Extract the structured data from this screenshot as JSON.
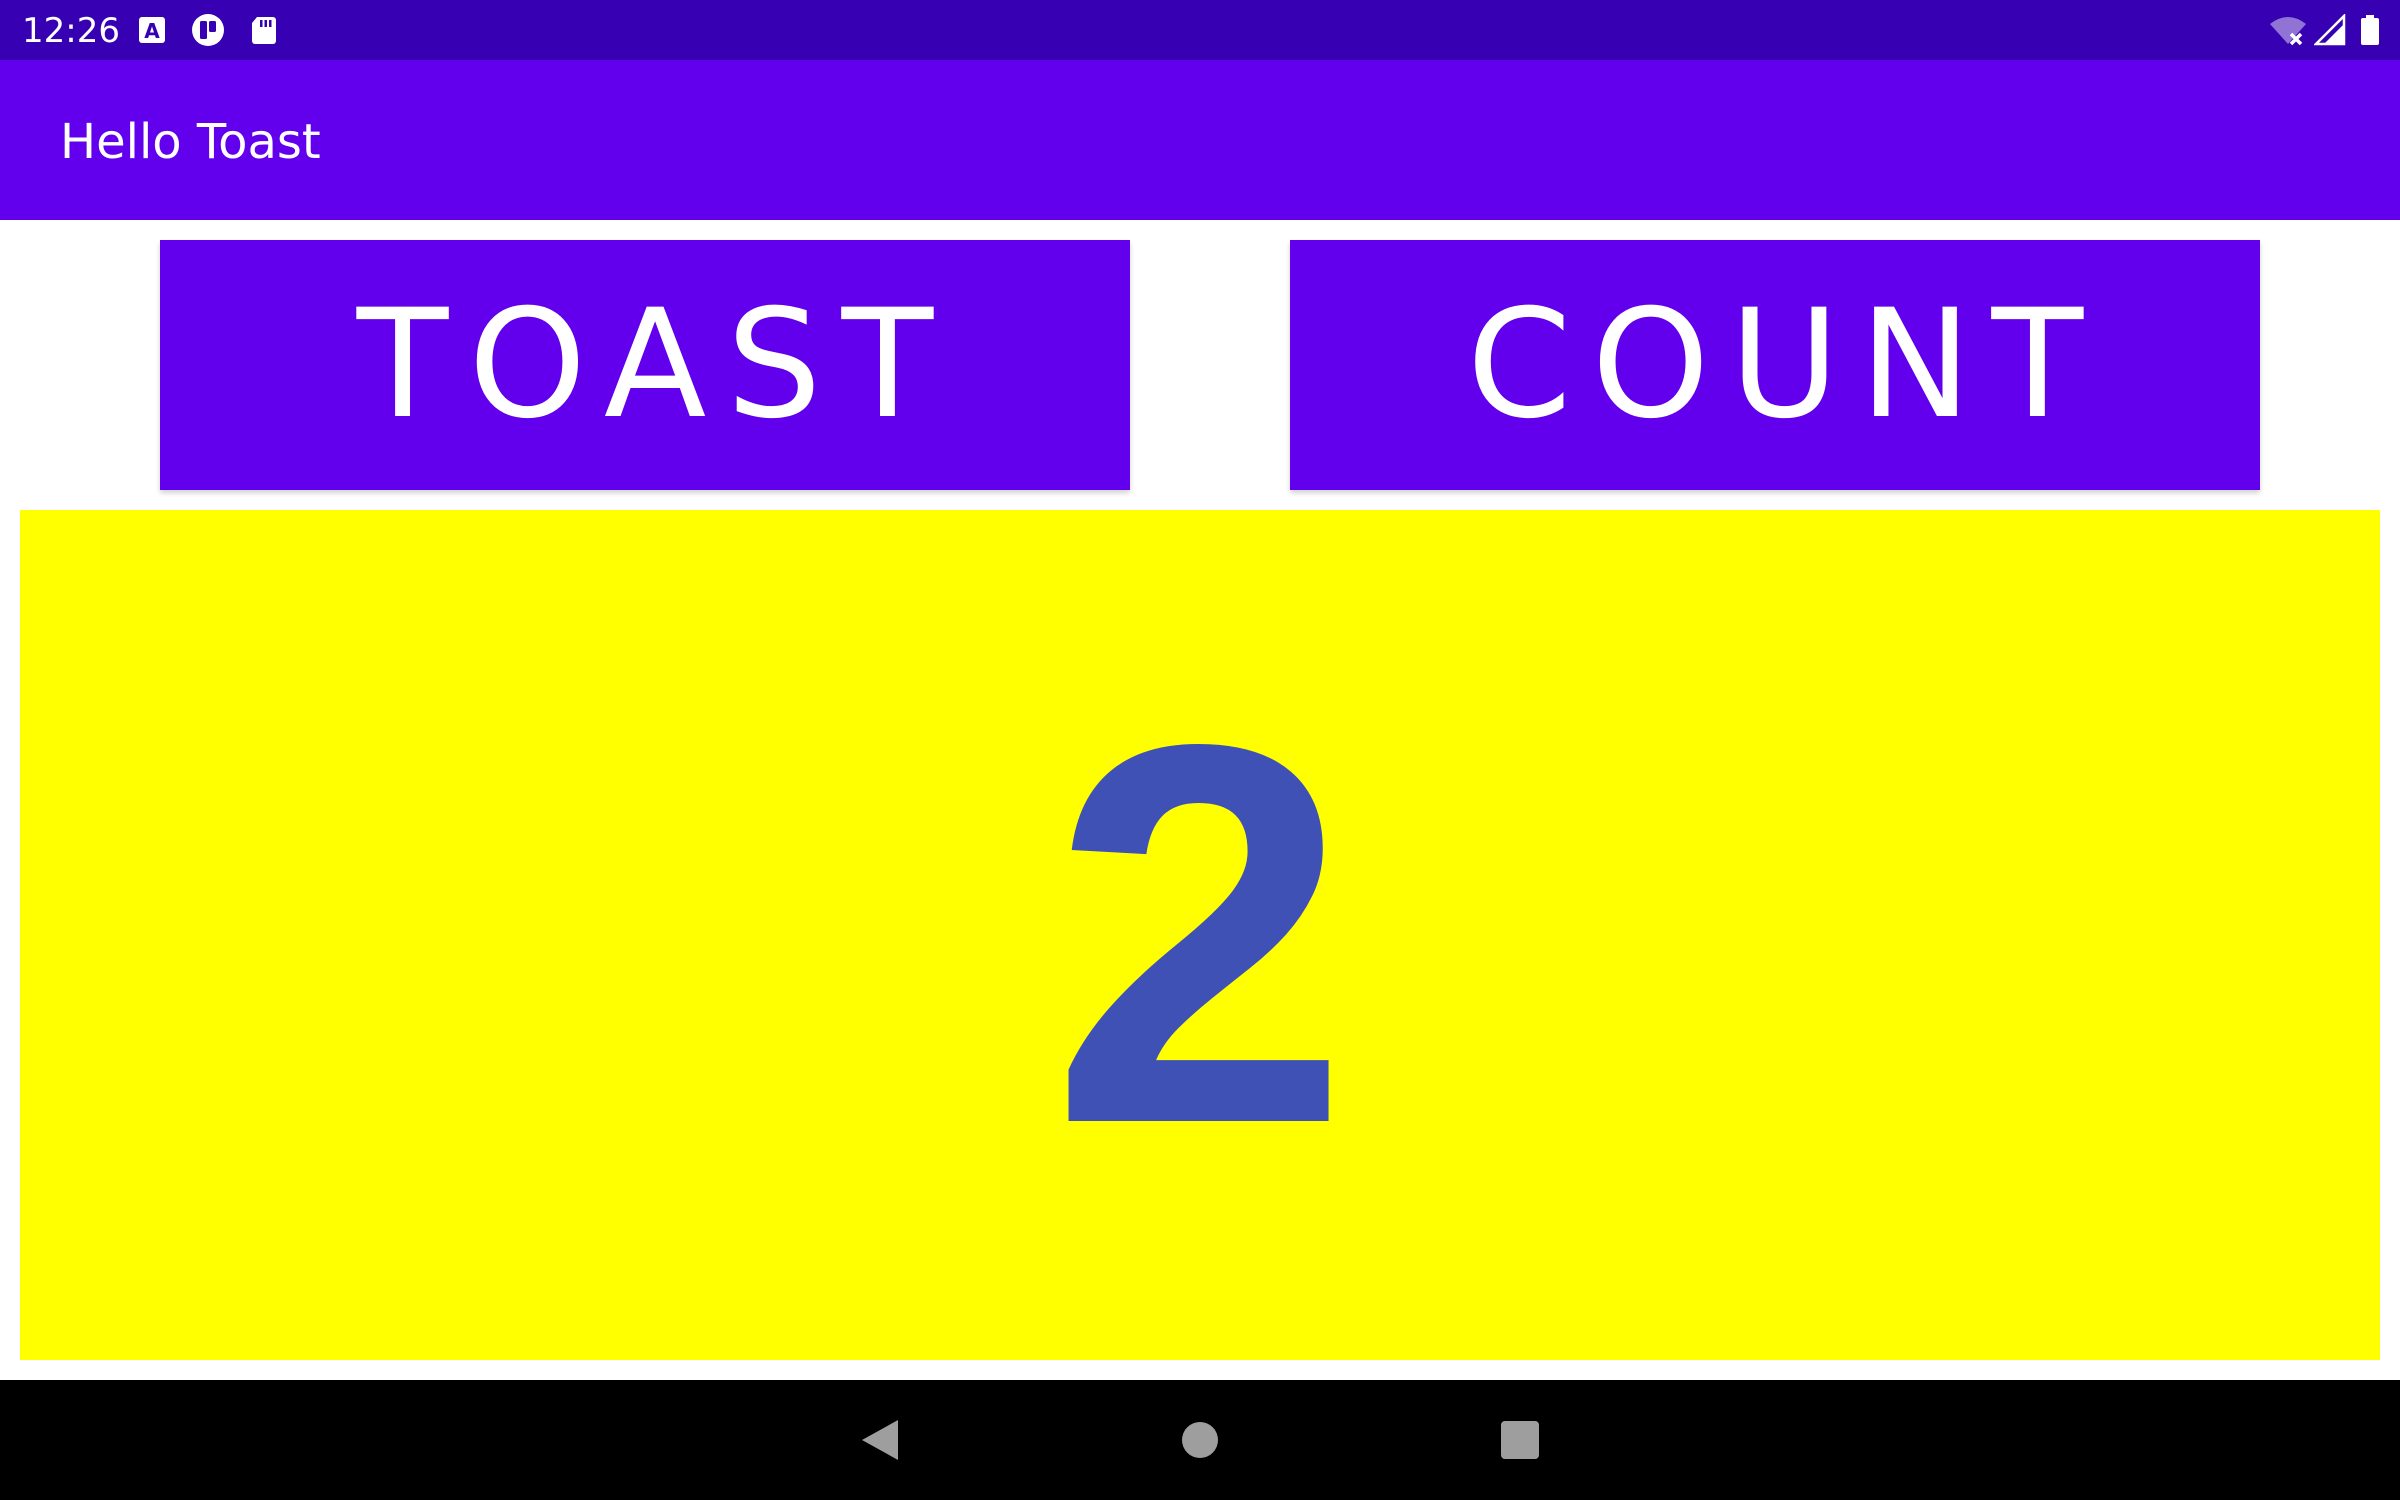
{
  "status_bar": {
    "time": "12:26",
    "left_icons": [
      "keyboard-a-icon",
      "notification-app-icon",
      "sd-card-icon"
    ],
    "right_icons": [
      "wifi-off-icon",
      "cell-signal-icon",
      "battery-icon"
    ],
    "background": "#3700b3"
  },
  "app_bar": {
    "title": "Hello Toast",
    "background": "#6200ee"
  },
  "buttons": {
    "toast_label": "TOAST",
    "count_label": "COUNT",
    "background": "#6200ee",
    "text_color": "#ffffff"
  },
  "counter": {
    "value": "2",
    "background": "#ffff00",
    "text_color": "#3f51b5"
  },
  "nav_bar": {
    "buttons": [
      "back-icon",
      "home-icon",
      "recents-icon"
    ],
    "background": "#000000"
  }
}
